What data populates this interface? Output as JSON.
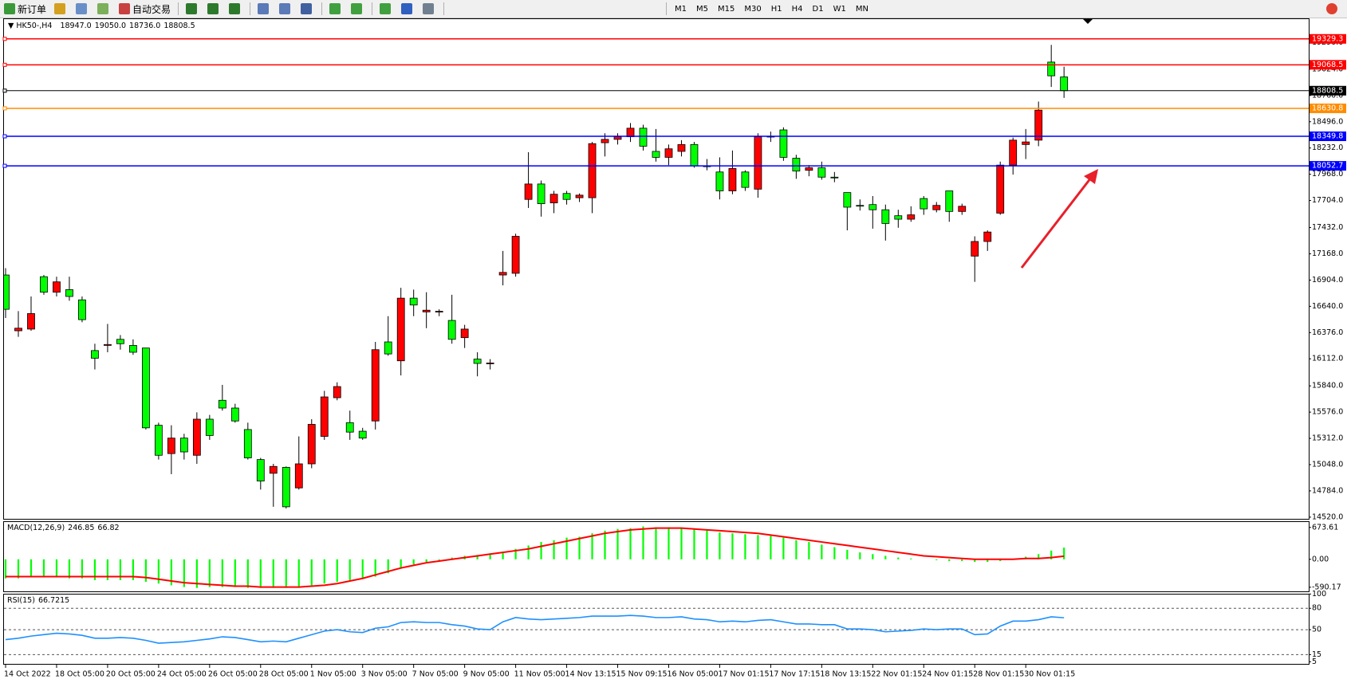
{
  "toolbar": {
    "new_order": "新订单",
    "auto_trading": "自动交易",
    "timeframes": [
      "M1",
      "M5",
      "M15",
      "M30",
      "H1",
      "H4",
      "D1",
      "W1",
      "MN"
    ]
  },
  "chart_data": [
    {
      "type": "candlestick",
      "symbol": "HK50-,H4",
      "legend_values": [
        {
          "value": 18947,
          "label": "18947.0"
        },
        {
          "value": 19050,
          "label": "19050.0"
        },
        {
          "value": 18736,
          "label": "18736.0"
        },
        {
          "value": 18808.5,
          "label": "18808.5"
        }
      ],
      "categories": [
        "14 Oct 2022",
        null,
        null,
        null,
        "18 Oct 05:00",
        null,
        null,
        null,
        "20 Oct 05:00",
        null,
        null,
        null,
        "24 Oct 05:00",
        null,
        null,
        null,
        "26 Oct 05:00",
        null,
        null,
        null,
        "28 Oct 05:00",
        null,
        null,
        null,
        "1 Nov 05:00",
        null,
        null,
        null,
        "3 Nov 05:00",
        null,
        null,
        null,
        "7 Nov 05:00",
        null,
        null,
        null,
        "9 Nov 05:00",
        null,
        null,
        null,
        "11 Nov 05:00",
        null,
        null,
        null,
        "14 Nov 13:15",
        null,
        null,
        null,
        "15 Nov 09:15",
        null,
        null,
        null,
        "16 Nov 05:00",
        null,
        null,
        null,
        "17 Nov 01:15",
        null,
        null,
        null,
        "17 Nov 17:15",
        null,
        null,
        null,
        "18 Nov 13:15",
        null,
        null,
        null,
        "22 Nov 01:15",
        null,
        null,
        null,
        "24 Nov 01:15",
        null,
        null,
        null,
        "28 Nov 01:15",
        null,
        null,
        null,
        "30 Nov 01:15",
        null,
        null,
        null
      ],
      "open": [
        16955,
        16394,
        16411,
        16938,
        16782,
        16808,
        16705,
        16195,
        16247,
        16308,
        16247,
        16221,
        15444,
        15159,
        15315,
        15142,
        15505,
        15695,
        15617,
        15401,
        15099,
        14961,
        15021,
        14814,
        15056,
        15332,
        15721,
        15470,
        15384,
        15487,
        16282,
        16092,
        16722,
        16584,
        16584,
        16498,
        16325,
        16109,
        16066,
        16955,
        16972,
        17715,
        17870,
        17680,
        17775,
        17732,
        17732,
        18285,
        18319,
        18345,
        18431,
        18198,
        18138,
        18198,
        18267,
        18052,
        17991,
        17801,
        17991,
        17818,
        18345,
        18414,
        18129,
        18008,
        18034,
        17939,
        17784,
        17655,
        17663,
        17611,
        17551,
        17516,
        17724,
        17611,
        17801,
        17594,
        17145,
        17292,
        17577,
        18060,
        18267,
        18311,
        19096,
        18947
      ],
      "high": [
        17024,
        16592,
        16739,
        16955,
        16938,
        16938,
        16739,
        16264,
        16463,
        16351,
        16308,
        16221,
        15470,
        15444,
        15358,
        15574,
        15548,
        15850,
        15660,
        15470,
        15116,
        15056,
        15030,
        15332,
        15505,
        15790,
        15876,
        15591,
        15418,
        16282,
        16541,
        16826,
        16808,
        16782,
        16610,
        16756,
        16454,
        16178,
        16109,
        17197,
        17370,
        18190,
        17905,
        17801,
        17801,
        17775,
        18293,
        18380,
        18380,
        18483,
        18466,
        18423,
        18267,
        18311,
        18293,
        18121,
        18138,
        18207,
        18008,
        18380,
        18397,
        18440,
        18164,
        18060,
        18095,
        17991,
        17784,
        17715,
        17749,
        17663,
        17611,
        17646,
        17749,
        17689,
        17801,
        17672,
        17344,
        17404,
        18095,
        18337,
        18423,
        18699,
        19269,
        19050
      ],
      "low": [
        16523,
        16333,
        16394,
        16756,
        16739,
        16696,
        16480,
        16005,
        16178,
        16204,
        16152,
        15401,
        15099,
        14952,
        15099,
        15056,
        15297,
        15591,
        15470,
        15099,
        14797,
        14624,
        14607,
        14797,
        15012,
        15297,
        15695,
        15297,
        15297,
        15401,
        16143,
        15945,
        16541,
        16420,
        16541,
        16264,
        16221,
        15936,
        16005,
        16851,
        16938,
        17629,
        17542,
        17577,
        17663,
        17689,
        17577,
        18147,
        18267,
        18293,
        18207,
        18095,
        18060,
        18147,
        18034,
        18008,
        17715,
        17767,
        17801,
        17732,
        18293,
        18103,
        17922,
        17948,
        17913,
        17888,
        17404,
        17603,
        17421,
        17301,
        17430,
        17490,
        17560,
        17585,
        17490,
        17560,
        16886,
        17197,
        17560,
        17965,
        18121,
        18250,
        18846,
        18736
      ],
      "close": [
        16610,
        16420,
        16567,
        16782,
        16886,
        16739,
        16506,
        16118,
        16256,
        16264,
        16178,
        15418,
        15142,
        15315,
        15176,
        15505,
        15341,
        15617,
        15487,
        15116,
        14883,
        15030,
        14624,
        15056,
        15453,
        15729,
        15833,
        15375,
        15315,
        16204,
        16161,
        16722,
        16653,
        16601,
        16590,
        16308,
        16411,
        16066,
        16070,
        16981,
        17344,
        17870,
        17672,
        17767,
        17715,
        17758,
        18276,
        18319,
        18345,
        18431,
        18250,
        18138,
        18224,
        18267,
        18052,
        18050,
        17801,
        18026,
        17836,
        18345,
        18350,
        18138,
        18000,
        18034,
        17939,
        17935,
        17637,
        17650,
        17611,
        17473,
        17516,
        17560,
        17620,
        17655,
        17594,
        17646,
        17292,
        17387,
        18060,
        18311,
        18293,
        18613,
        18958,
        18808.5
      ],
      "up_color": "#ff0000",
      "down_color": "#00ff00",
      "ylim": [
        14503,
        19528
      ],
      "yticks": [
        {
          "value": 14520,
          "label": "14520.0"
        },
        {
          "value": 14784,
          "label": "14784.0"
        },
        {
          "value": 15048,
          "label": "15048.0"
        },
        {
          "value": 15312,
          "label": "15312.0"
        },
        {
          "value": 15576,
          "label": "15576.0"
        },
        {
          "value": 15840,
          "label": "15840.0"
        },
        {
          "value": 16112,
          "label": "16112.0"
        },
        {
          "value": 16376,
          "label": "16376.0"
        },
        {
          "value": 16640,
          "label": "16640.0"
        },
        {
          "value": 16904,
          "label": "16904.0"
        },
        {
          "value": 17168,
          "label": "17168.0"
        },
        {
          "value": 17432,
          "label": "17432.0"
        },
        {
          "value": 17704,
          "label": "17704.0"
        },
        {
          "value": 17968,
          "label": "17968.0"
        },
        {
          "value": 18232,
          "label": "18232.0"
        },
        {
          "value": 18496,
          "label": "18496.0"
        },
        {
          "value": 18760,
          "label": "18760.0"
        },
        {
          "value": 19024,
          "label": "19024.0"
        },
        {
          "value": 19290,
          "label": "19290.0"
        }
      ],
      "hlines": [
        {
          "value": 19329.3,
          "color": "#ff0000"
        },
        {
          "value": 19068.5,
          "color": "#ff0000"
        },
        {
          "value": 18808.5,
          "color": "#000000"
        },
        {
          "value": 18630.8,
          "color": "#ff8c00"
        },
        {
          "value": 18349.8,
          "color": "#0000ff"
        },
        {
          "value": 18052.7,
          "color": "#0000ff"
        }
      ]
    },
    {
      "type": "macd",
      "title": "MACD(12,26,9)",
      "histogram": [
        -403,
        -403,
        -366,
        -366,
        -384,
        -403,
        -403,
        -439,
        -439,
        -439,
        -439,
        -476,
        -512,
        -549,
        -586,
        -604,
        -586,
        -586,
        -586,
        -604,
        -604,
        -604,
        -604,
        -586,
        -549,
        -512,
        -476,
        -439,
        -403,
        -366,
        -293,
        -183,
        -110,
        -55,
        -18,
        37,
        73,
        92,
        110,
        146,
        220,
        293,
        366,
        403,
        458,
        476,
        549,
        604,
        641,
        659,
        695,
        677,
        677,
        659,
        641,
        604,
        567,
        549,
        531,
        512,
        494,
        458,
        403,
        366,
        311,
        256,
        201,
        146,
        110,
        73,
        37,
        18,
        0,
        -18,
        -37,
        -37,
        -55,
        -55,
        -37,
        0,
        55,
        110,
        183,
        246.85
      ],
      "signal": [
        -366,
        -366,
        -366,
        -366,
        -366,
        -366,
        -366,
        -366,
        -366,
        -366,
        -366,
        -384,
        -421,
        -458,
        -494,
        -512,
        -531,
        -549,
        -567,
        -567,
        -586,
        -586,
        -586,
        -586,
        -567,
        -549,
        -512,
        -458,
        -403,
        -329,
        -256,
        -183,
        -128,
        -73,
        -37,
        0,
        37,
        73,
        110,
        146,
        183,
        220,
        275,
        329,
        384,
        439,
        494,
        549,
        586,
        622,
        641,
        659,
        659,
        659,
        641,
        622,
        604,
        586,
        567,
        549,
        512,
        476,
        439,
        403,
        366,
        329,
        293,
        256,
        220,
        183,
        146,
        110,
        73,
        55,
        37,
        18,
        0,
        0,
        0,
        0,
        18,
        18,
        37,
        66.82
      ],
      "bar_color": "#00ff00",
      "line_color": "#ff0000",
      "ylim": [
        -677,
        805
      ],
      "yticks": [
        673.61,
        {
          "value": 0,
          "label": "0.00"
        },
        -590.17
      ]
    },
    {
      "type": "rsi",
      "title": "RSI(15)",
      "values": [
        36,
        38,
        41,
        43,
        45,
        44,
        42,
        38,
        38,
        39,
        38,
        35,
        31,
        32,
        33,
        35,
        37,
        40,
        39,
        36,
        33,
        34,
        33,
        38,
        43,
        48,
        50,
        47,
        46,
        52,
        54,
        60,
        61,
        60,
        60,
        57,
        55,
        51,
        50,
        61,
        67,
        65,
        64,
        65,
        66,
        67,
        69,
        69,
        69,
        70,
        69,
        67,
        67,
        68,
        65,
        64,
        61,
        62,
        61,
        63,
        64,
        61,
        58,
        58,
        57,
        57,
        51,
        51,
        50,
        47,
        48,
        49,
        51,
        50,
        51,
        51,
        43,
        44,
        55,
        62,
        62,
        64,
        68,
        66.7215
      ],
      "color": "#1e90ff",
      "ylim": [
        2,
        100.4
      ],
      "yticks": [
        100,
        80,
        50,
        15,
        5
      ],
      "levels": [
        80,
        50,
        15
      ]
    }
  ]
}
